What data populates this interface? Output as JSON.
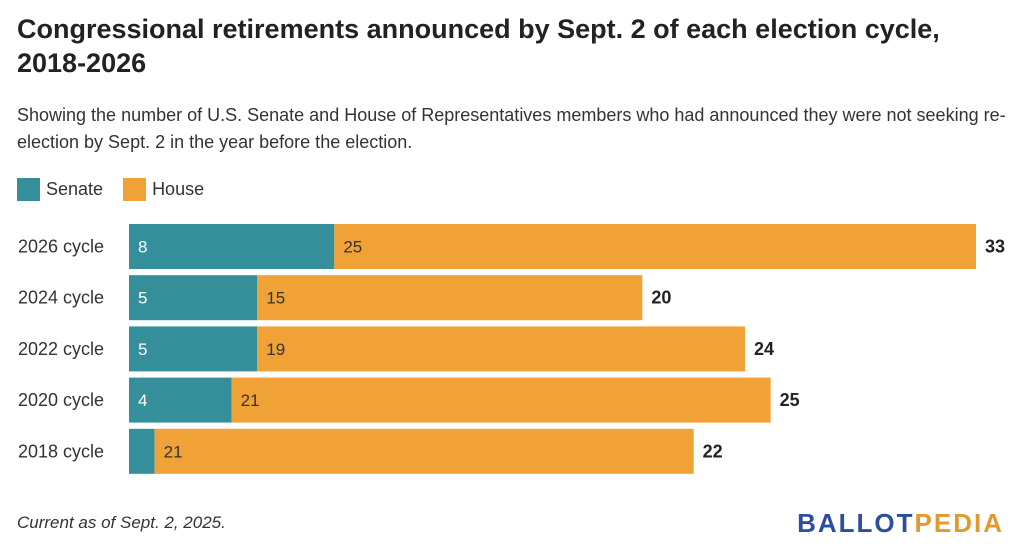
{
  "header": {
    "title": "Congressional retirements announced by Sept. 2 of each election cycle, 2018-2026",
    "subtitle": "Showing the number of U.S. Senate and House of Representatives members who had announced they were not seeking re-election by Sept. 2 in the year before the election."
  },
  "legend": {
    "items": [
      {
        "label": "Senate",
        "color": "#358f9a"
      },
      {
        "label": "House",
        "color": "#f0a236"
      }
    ]
  },
  "chart_data": {
    "type": "bar",
    "orientation": "horizontal",
    "stacked": true,
    "categories": [
      "2026 cycle",
      "2024 cycle",
      "2022 cycle",
      "2020 cycle",
      "2018 cycle"
    ],
    "series": [
      {
        "name": "Senate",
        "values": [
          8,
          5,
          5,
          4,
          1
        ],
        "color": "#358f9a"
      },
      {
        "name": "House",
        "values": [
          25,
          15,
          19,
          21,
          21
        ],
        "color": "#f0a236"
      }
    ],
    "totals": [
      33,
      20,
      24,
      25,
      22
    ],
    "xlim": [
      0,
      33
    ],
    "grid": false,
    "legend_position": "top-left"
  },
  "footer": {
    "note": "Current as of Sept. 2, 2025.",
    "logo_part1": "BALLOT",
    "logo_part2": "PEDIA"
  }
}
